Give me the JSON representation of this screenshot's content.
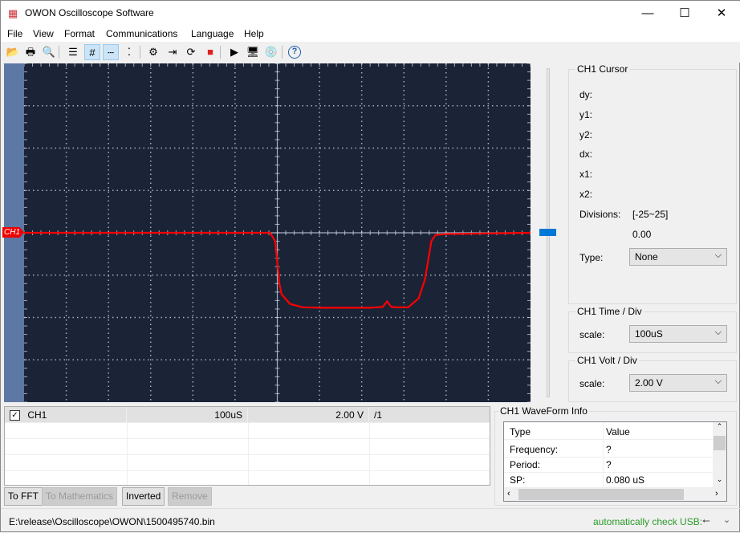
{
  "window": {
    "title": "OWON Oscilloscope Software",
    "minimize": "—",
    "maximize": "☐",
    "close": "✕"
  },
  "menu": [
    "File",
    "View",
    "Format",
    "Communications",
    "Language",
    "Help"
  ],
  "toolbar": [
    {
      "icon": "open-folder-icon",
      "glyph": "📂"
    },
    {
      "icon": "print-icon",
      "glyph": "🖶"
    },
    {
      "icon": "print-preview-icon",
      "glyph": "🔍"
    },
    {
      "icon": "list-icon",
      "glyph": "☰"
    },
    {
      "icon": "grid-icon",
      "glyph": "#",
      "active": true
    },
    {
      "icon": "dotted-line-icon",
      "glyph": "┄",
      "active": true
    },
    {
      "icon": "dots-icon",
      "glyph": "⁚"
    },
    {
      "icon": "settings-gears-icon",
      "glyph": "⚙"
    },
    {
      "icon": "import-icon",
      "glyph": "⇥"
    },
    {
      "icon": "refresh-icon",
      "glyph": "⟳"
    },
    {
      "icon": "stop-icon",
      "glyph": "■"
    },
    {
      "icon": "export-video-icon",
      "glyph": "▶"
    },
    {
      "icon": "monitor-icon",
      "glyph": "🖥"
    },
    {
      "icon": "disk-icon",
      "glyph": "💿"
    },
    {
      "icon": "help-icon",
      "glyph": "?"
    }
  ],
  "colors": {
    "scope_bg": "#1b2337",
    "grid": "#c8d0e0",
    "trace": "#ff0000",
    "slider": "#0078d7",
    "status_green": "#2a9a2a"
  },
  "scope": {
    "channel_marker": "CH1",
    "h_divisions": 12,
    "v_divisions": 8
  },
  "cursor": {
    "title": "CH1 Cursor",
    "labels": [
      "dy:",
      "y1:",
      "y2:",
      "dx:",
      "x1:",
      "x2:"
    ],
    "divisions_label": "Divisions:",
    "divisions_range": "[-25~25]",
    "value": "0.00",
    "type_label": "Type:",
    "type_value": "None"
  },
  "time": {
    "title": "CH1 Time / Div",
    "scale_label": "scale:",
    "scale_value": "100uS"
  },
  "volt": {
    "title": "CH1 Volt / Div",
    "scale_label": "scale:",
    "scale_value": "2.00 V"
  },
  "channel_table": {
    "rows": [
      {
        "checked": true,
        "name": "CH1",
        "time": "100uS",
        "volt": "2.00 V",
        "probe": "/1"
      }
    ]
  },
  "buttons": {
    "fft": "To FFT",
    "math": "To Mathematics",
    "inverted": "Inverted",
    "remove": "Remove"
  },
  "waveinfo": {
    "title": "CH1 WaveForm Info",
    "header": [
      "Type",
      "Value"
    ],
    "rows": [
      [
        "Frequency:",
        "?"
      ],
      [
        "Period:",
        "?"
      ],
      [
        "SP:",
        "0.080 uS"
      ]
    ]
  },
  "status": {
    "path": "E:\\release\\Oscilloscope\\OWON\\1500495740.bin",
    "usb": "automatically check USB:"
  }
}
